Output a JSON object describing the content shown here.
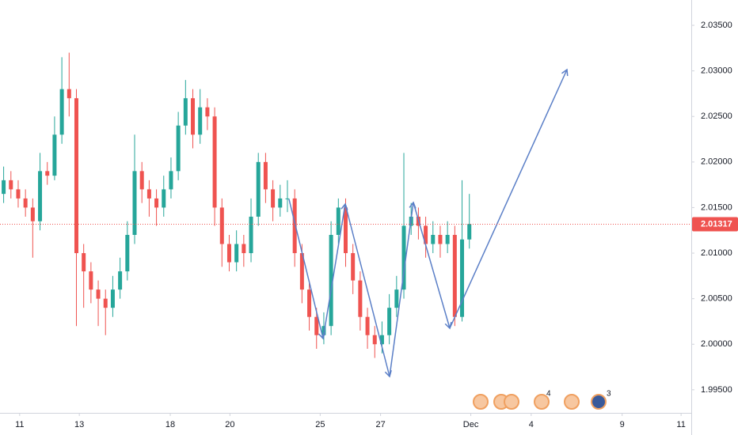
{
  "chart_data": {
    "type": "candlestick",
    "ohlc": [
      [
        2.0165,
        2.0195,
        2.0155,
        2.018
      ],
      [
        2.018,
        2.019,
        2.016,
        2.017
      ],
      [
        2.017,
        2.018,
        2.015,
        2.016
      ],
      [
        2.016,
        2.017,
        2.014,
        2.015
      ],
      [
        2.015,
        2.016,
        2.0095,
        2.0135
      ],
      [
        2.0135,
        2.021,
        2.0125,
        2.019
      ],
      [
        2.019,
        2.02,
        2.0175,
        2.0185
      ],
      [
        2.0185,
        2.025,
        2.018,
        2.023
      ],
      [
        2.023,
        2.0315,
        2.022,
        2.028
      ],
      [
        2.028,
        2.032,
        2.025,
        2.027
      ],
      [
        2.027,
        2.028,
        2.002,
        2.01
      ],
      [
        2.01,
        2.011,
        2.004,
        2.008
      ],
      [
        2.008,
        2.009,
        2.0045,
        2.006
      ],
      [
        2.006,
        2.007,
        2.002,
        2.005
      ],
      [
        2.005,
        2.006,
        2.001,
        2.004
      ],
      [
        2.004,
        2.0075,
        2.003,
        2.006
      ],
      [
        2.006,
        2.0095,
        2.005,
        2.008
      ],
      [
        2.008,
        2.0135,
        2.007,
        2.012
      ],
      [
        2.012,
        2.023,
        2.011,
        2.019
      ],
      [
        2.019,
        2.02,
        2.0155,
        2.017
      ],
      [
        2.017,
        2.018,
        2.014,
        2.016
      ],
      [
        2.016,
        2.017,
        2.013,
        2.015
      ],
      [
        2.015,
        2.0185,
        2.014,
        2.017
      ],
      [
        2.017,
        2.0205,
        2.016,
        2.019
      ],
      [
        2.019,
        2.0255,
        2.018,
        2.024
      ],
      [
        2.024,
        2.029,
        2.023,
        2.027
      ],
      [
        2.027,
        2.028,
        2.0215,
        2.023
      ],
      [
        2.023,
        2.028,
        2.022,
        2.026
      ],
      [
        2.026,
        2.027,
        2.0235,
        2.025
      ],
      [
        2.025,
        2.026,
        2.013,
        2.015
      ],
      [
        2.015,
        2.016,
        2.0085,
        2.011
      ],
      [
        2.011,
        2.012,
        2.008,
        2.009
      ],
      [
        2.009,
        2.0125,
        2.008,
        2.011
      ],
      [
        2.011,
        2.012,
        2.0085,
        2.01
      ],
      [
        2.01,
        2.016,
        2.009,
        2.014
      ],
      [
        2.014,
        2.021,
        2.013,
        2.02
      ],
      [
        2.02,
        2.021,
        2.0155,
        2.017
      ],
      [
        2.017,
        2.018,
        2.0135,
        2.015
      ],
      [
        2.015,
        2.0175,
        2.014,
        2.016
      ],
      [
        2.016,
        2.018,
        2.0145,
        2.016
      ],
      [
        2.016,
        2.017,
        2.0085,
        2.01
      ],
      [
        2.01,
        2.011,
        2.0045,
        2.006
      ],
      [
        2.006,
        2.007,
        2.0015,
        2.003
      ],
      [
        2.003,
        2.004,
        1.9995,
        2.001
      ],
      [
        2.001,
        2.0035,
        2.0,
        2.002
      ],
      [
        2.002,
        2.0135,
        2.001,
        2.012
      ],
      [
        2.012,
        2.016,
        2.011,
        2.015
      ],
      [
        2.015,
        2.016,
        2.0085,
        2.01
      ],
      [
        2.01,
        2.011,
        2.0055,
        2.007
      ],
      [
        2.007,
        2.008,
        2.0015,
        2.003
      ],
      [
        2.003,
        2.004,
        1.9995,
        2.001
      ],
      [
        2.001,
        2.002,
        1.9985,
        2.0
      ],
      [
        2.0,
        2.0025,
        1.999,
        2.001
      ],
      [
        2.001,
        2.0055,
        2.0,
        2.004
      ],
      [
        2.004,
        2.0075,
        2.003,
        2.006
      ],
      [
        2.006,
        2.021,
        2.005,
        2.013
      ],
      [
        2.013,
        2.0155,
        2.012,
        2.014
      ],
      [
        2.014,
        2.015,
        2.0115,
        2.013
      ],
      [
        2.013,
        2.014,
        2.0095,
        2.011
      ],
      [
        2.011,
        2.0135,
        2.01,
        2.012
      ],
      [
        2.012,
        2.013,
        2.0095,
        2.011
      ],
      [
        2.011,
        2.0135,
        2.01,
        2.012
      ],
      [
        2.012,
        2.013,
        2.002,
        2.003
      ],
      [
        2.003,
        2.018,
        2.0025,
        2.0115
      ],
      [
        2.0115,
        2.0165,
        2.0105,
        2.0132
      ]
    ],
    "up_color": "#26a69a",
    "down_color": "#ef5350",
    "xlim": [
      -0.5,
      94.5
    ],
    "xticks": [
      {
        "value": 2.2,
        "label": "11"
      },
      {
        "value": 10.4,
        "label": "13"
      },
      {
        "value": 22.9,
        "label": "18"
      },
      {
        "value": 31.1,
        "label": "20"
      },
      {
        "value": 43.5,
        "label": "25"
      },
      {
        "value": 51.8,
        "label": "27"
      },
      {
        "value": 64.2,
        "label": "Dec"
      },
      {
        "value": 72.5,
        "label": "4"
      },
      {
        "value": 85.0,
        "label": "9"
      },
      {
        "value": 93.1,
        "label": "11"
      }
    ],
    "ylim": [
      1.99247,
      2.03778
    ],
    "yticks": [
      {
        "value": 2.035,
        "label": "2.03500"
      },
      {
        "value": 2.03,
        "label": "2.03000"
      },
      {
        "value": 2.025,
        "label": "2.02500"
      },
      {
        "value": 2.02,
        "label": "2.02000"
      },
      {
        "value": 2.015,
        "label": "2.01500"
      },
      {
        "value": 2.01,
        "label": "2.01000"
      },
      {
        "value": 2.005,
        "label": "2.00500"
      },
      {
        "value": 2.0,
        "label": "2.00000"
      },
      {
        "value": 1.995,
        "label": "1.99500"
      }
    ],
    "last_price": {
      "value": 2.01317,
      "label": "2.01317"
    },
    "event_badges": [
      4,
      3
    ]
  }
}
